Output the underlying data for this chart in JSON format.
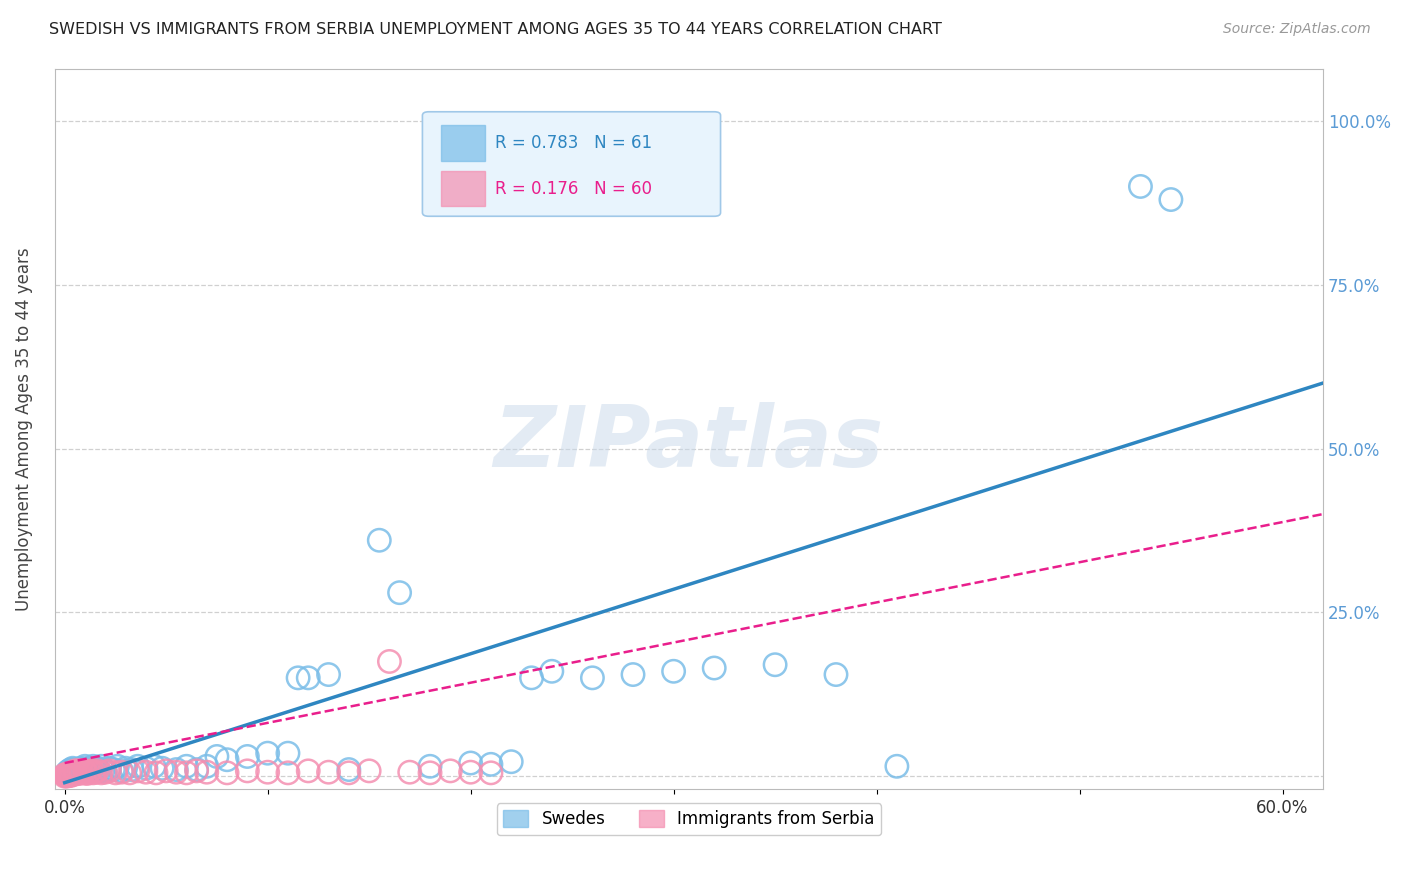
{
  "title": "SWEDISH VS IMMIGRANTS FROM SERBIA UNEMPLOYMENT AMONG AGES 35 TO 44 YEARS CORRELATION CHART",
  "source": "Source: ZipAtlas.com",
  "ylabel": "Unemployment Among Ages 35 to 44 years",
  "xlim": [
    -0.005,
    0.62
  ],
  "ylim": [
    -0.02,
    1.08
  ],
  "xtick_positions": [
    0.0,
    0.1,
    0.2,
    0.3,
    0.4,
    0.5,
    0.6
  ],
  "ytick_positions": [
    0.0,
    0.25,
    0.5,
    0.75,
    1.0
  ],
  "ytick_labels": [
    "",
    "25.0%",
    "50.0%",
    "75.0%",
    "100.0%"
  ],
  "swedes_R": 0.783,
  "swedes_N": 61,
  "serbia_R": 0.176,
  "serbia_N": 60,
  "swedes_color": "#7abde8",
  "serbia_color": "#f48fb1",
  "swedes_line_color": "#2e86c1",
  "serbia_line_color": "#e91e8c",
  "bg_color": "#ffffff",
  "grid_color": "#d0d0d0",
  "watermark_text": "ZIPatlas",
  "legend_bg": "#e8f4fd",
  "legend_border": "#a0c8e8",
  "swedes_line_x0": 0.0,
  "swedes_line_y0": -0.01,
  "swedes_line_x1": 0.62,
  "swedes_line_y1": 0.6,
  "serbia_line_x0": 0.0,
  "serbia_line_y0": 0.02,
  "serbia_line_x1": 0.62,
  "serbia_line_y1": 0.4,
  "swedes_x": [
    0.001,
    0.002,
    0.003,
    0.003,
    0.004,
    0.005,
    0.006,
    0.007,
    0.008,
    0.009,
    0.01,
    0.011,
    0.012,
    0.013,
    0.014,
    0.015,
    0.016,
    0.017,
    0.018,
    0.019,
    0.02,
    0.022,
    0.024,
    0.026,
    0.028,
    0.03,
    0.033,
    0.036,
    0.04,
    0.044,
    0.048,
    0.055,
    0.06,
    0.065,
    0.07,
    0.075,
    0.08,
    0.09,
    0.1,
    0.11,
    0.115,
    0.12,
    0.13,
    0.14,
    0.155,
    0.165,
    0.18,
    0.2,
    0.21,
    0.22,
    0.23,
    0.24,
    0.26,
    0.28,
    0.3,
    0.32,
    0.35,
    0.38,
    0.41,
    0.53,
    0.545
  ],
  "swedes_y": [
    0.005,
    0.008,
    0.01,
    0.008,
    0.012,
    0.006,
    0.01,
    0.008,
    0.012,
    0.01,
    0.015,
    0.01,
    0.012,
    0.008,
    0.015,
    0.01,
    0.012,
    0.008,
    0.015,
    0.01,
    0.008,
    0.012,
    0.01,
    0.015,
    0.008,
    0.012,
    0.01,
    0.015,
    0.012,
    0.015,
    0.012,
    0.01,
    0.015,
    0.01,
    0.015,
    0.03,
    0.025,
    0.03,
    0.035,
    0.035,
    0.15,
    0.15,
    0.155,
    0.01,
    0.36,
    0.28,
    0.015,
    0.02,
    0.018,
    0.022,
    0.15,
    0.16,
    0.15,
    0.155,
    0.16,
    0.165,
    0.17,
    0.155,
    0.015,
    0.9,
    0.88
  ],
  "serbia_x": [
    0.0,
    0.0,
    0.001,
    0.001,
    0.001,
    0.001,
    0.002,
    0.002,
    0.002,
    0.003,
    0.003,
    0.003,
    0.004,
    0.004,
    0.005,
    0.005,
    0.005,
    0.006,
    0.006,
    0.007,
    0.007,
    0.008,
    0.008,
    0.009,
    0.01,
    0.01,
    0.011,
    0.012,
    0.013,
    0.014,
    0.015,
    0.016,
    0.018,
    0.02,
    0.022,
    0.025,
    0.028,
    0.032,
    0.036,
    0.04,
    0.045,
    0.05,
    0.055,
    0.06,
    0.065,
    0.07,
    0.08,
    0.09,
    0.1,
    0.11,
    0.12,
    0.13,
    0.14,
    0.15,
    0.16,
    0.17,
    0.18,
    0.19,
    0.2,
    0.21
  ],
  "serbia_y": [
    0.0,
    0.002,
    0.0,
    0.001,
    0.002,
    0.003,
    0.001,
    0.002,
    0.003,
    0.001,
    0.002,
    0.004,
    0.003,
    0.005,
    0.003,
    0.006,
    0.008,
    0.005,
    0.008,
    0.004,
    0.008,
    0.005,
    0.008,
    0.006,
    0.005,
    0.008,
    0.004,
    0.006,
    0.008,
    0.005,
    0.006,
    0.008,
    0.005,
    0.006,
    0.008,
    0.005,
    0.006,
    0.005,
    0.008,
    0.006,
    0.005,
    0.008,
    0.006,
    0.005,
    0.008,
    0.006,
    0.005,
    0.008,
    0.006,
    0.005,
    0.008,
    0.006,
    0.005,
    0.008,
    0.175,
    0.006,
    0.005,
    0.008,
    0.006,
    0.005
  ]
}
